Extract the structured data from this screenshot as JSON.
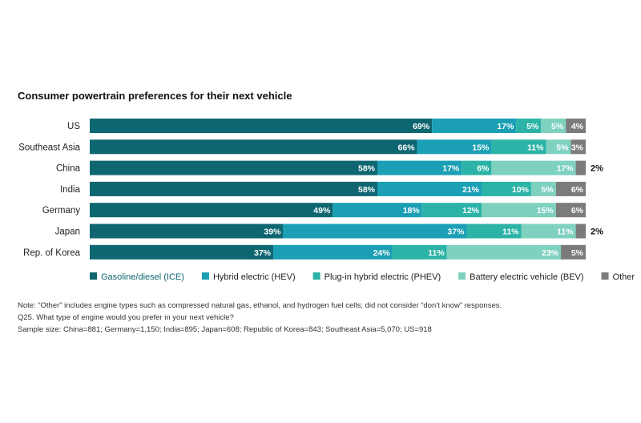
{
  "chart_data": {
    "type": "bar",
    "orientation": "horizontal",
    "stacked": true,
    "title": "Consumer powertrain preferences for their next vehicle",
    "categories": [
      "US",
      "Southeast Asia",
      "China",
      "India",
      "Germany",
      "Japan",
      "Rep. of Korea"
    ],
    "series": [
      {
        "name": "Gasoline/diesel (ICE)",
        "color": "#0e6670",
        "values": [
          69,
          66,
          58,
          58,
          49,
          39,
          37
        ]
      },
      {
        "name": "Hybrid electric (HEV)",
        "color": "#1a9fb5",
        "values": [
          17,
          15,
          17,
          21,
          18,
          37,
          24
        ]
      },
      {
        "name": "Plug-in hybrid electric (PHEV)",
        "color": "#2cb3a7",
        "values": [
          5,
          11,
          6,
          10,
          12,
          11,
          11
        ]
      },
      {
        "name": "Battery electric vehicle (BEV)",
        "color": "#7fd1bf",
        "values": [
          5,
          5,
          17,
          5,
          15,
          11,
          23
        ]
      },
      {
        "name": "Other",
        "color": "#7b7b7b",
        "values": [
          4,
          3,
          2,
          6,
          6,
          2,
          5
        ]
      }
    ],
    "outside_labels": {
      "China": "2%",
      "Japan": "2%"
    },
    "xlim": [
      0,
      100
    ],
    "legend_position": "bottom"
  },
  "notes": [
    "Note: “Other” includes engine types such as compressed natural gas, ethanol, and hydrogen fuel cells; did not consider “don’t know” responses.",
    "Q25. What type of engine would you prefer in your next vehicle?",
    "Sample size: China=881; Germany=1,150; India=895; Japan=608; Republic of Korea=843; Southeast Asia=5,070; US=918"
  ]
}
